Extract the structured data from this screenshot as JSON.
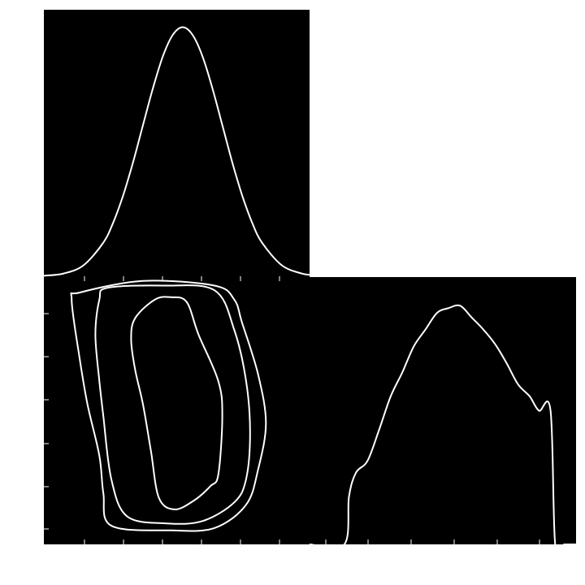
{
  "chart_data": [
    {
      "panel": "top-left",
      "type": "line",
      "title": "",
      "xlabel": "",
      "ylabel": "",
      "xlim": [
        -3.5,
        3.2
      ],
      "ylim": [
        0,
        1.07
      ],
      "x": [
        -3.5,
        -3.0,
        -2.5,
        -2.0,
        -1.75,
        -1.5,
        -1.25,
        -1.0,
        -0.75,
        -0.5,
        -0.25,
        0.0,
        0.25,
        0.5,
        0.75,
        1.0,
        1.25,
        1.5,
        1.75,
        2.0,
        2.5,
        3.0,
        3.2
      ],
      "series": [
        {
          "values": [
            0.002,
            0.011,
            0.044,
            0.135,
            0.216,
            0.325,
            0.458,
            0.607,
            0.755,
            0.883,
            0.969,
            1.0,
            0.969,
            0.883,
            0.755,
            0.607,
            0.458,
            0.325,
            0.216,
            0.135,
            0.044,
            0.011,
            0.006
          ]
        }
      ],
      "background": "#000000",
      "line_color": "#ffffff"
    },
    {
      "panel": "bottom-left",
      "type": "contour",
      "title": "",
      "xlabel": "",
      "ylabel": "",
      "xlim": [
        -3.5,
        3.2
      ],
      "ylim": [
        -0.1,
        1.05
      ],
      "contours": [
        {
          "level": "inner",
          "points": [
            [
              -0.7,
              0.95
            ],
            [
              -0.3,
              0.96
            ],
            [
              0.1,
              0.94
            ],
            [
              0.4,
              0.8
            ],
            [
              0.9,
              0.6
            ],
            [
              1.0,
              0.45
            ],
            [
              0.9,
              0.2
            ],
            [
              0.7,
              0.15
            ],
            [
              0.3,
              0.09
            ],
            [
              -0.2,
              0.05
            ],
            [
              -0.6,
              0.1
            ],
            [
              -0.8,
              0.3
            ],
            [
              -1.0,
              0.5
            ],
            [
              -1.2,
              0.65
            ],
            [
              -1.3,
              0.78
            ],
            [
              -1.2,
              0.87
            ],
            [
              -0.7,
              0.95
            ]
          ]
        },
        {
          "level": "middle",
          "points": [
            [
              -1.9,
              1.0
            ],
            [
              -0.5,
              1.01
            ],
            [
              0.8,
              0.99
            ],
            [
              1.3,
              0.82
            ],
            [
              1.6,
              0.6
            ],
            [
              1.7,
              0.38
            ],
            [
              1.6,
              0.18
            ],
            [
              1.3,
              0.08
            ],
            [
              0.5,
              0.0
            ],
            [
              -0.4,
              -0.01
            ],
            [
              -1.4,
              0.02
            ],
            [
              -1.8,
              0.18
            ],
            [
              -2.0,
              0.45
            ],
            [
              -2.1,
              0.6
            ],
            [
              -2.2,
              0.8
            ],
            [
              -2.1,
              0.95
            ],
            [
              -1.9,
              1.0
            ]
          ]
        },
        {
          "level": "outer",
          "points": [
            [
              -2.6,
              0.98
            ],
            [
              -1.0,
              1.03
            ],
            [
              0.8,
              1.01
            ],
            [
              1.3,
              0.95
            ],
            [
              1.5,
              0.85
            ],
            [
              1.9,
              0.63
            ],
            [
              2.1,
              0.42
            ],
            [
              1.9,
              0.22
            ],
            [
              1.6,
              0.07
            ],
            [
              0.8,
              -0.03
            ],
            [
              -0.3,
              -0.04
            ],
            [
              -1.8,
              -0.02
            ],
            [
              -2.0,
              0.12
            ],
            [
              -2.1,
              0.28
            ],
            [
              -2.4,
              0.5
            ],
            [
              -2.6,
              0.7
            ],
            [
              -2.8,
              0.95
            ],
            [
              -2.6,
              0.98
            ]
          ]
        }
      ],
      "background": "#000000",
      "line_color": "#ffffff"
    },
    {
      "panel": "bottom-right",
      "type": "line",
      "title": "",
      "xlabel": "",
      "ylabel": "",
      "xlim": [
        -0.1,
        1.05
      ],
      "ylim": [
        0,
        1.12
      ],
      "x": [
        -0.1,
        0.05,
        0.07,
        0.1,
        0.15,
        0.2,
        0.25,
        0.3,
        0.35,
        0.4,
        0.45,
        0.5,
        0.55,
        0.6,
        0.65,
        0.7,
        0.75,
        0.8,
        0.85,
        0.89,
        0.94,
        0.96,
        1.0,
        1.05
      ],
      "series": [
        {
          "values": [
            0.0,
            0.0,
            0.2,
            0.3,
            0.35,
            0.48,
            0.62,
            0.72,
            0.83,
            0.9,
            0.97,
            0.99,
            1.0,
            0.95,
            0.9,
            0.84,
            0.76,
            0.67,
            0.62,
            0.56,
            0.56,
            0.0,
            0.0,
            0.0
          ]
        }
      ],
      "background": "#000000",
      "line_color": "#ffffff"
    }
  ]
}
